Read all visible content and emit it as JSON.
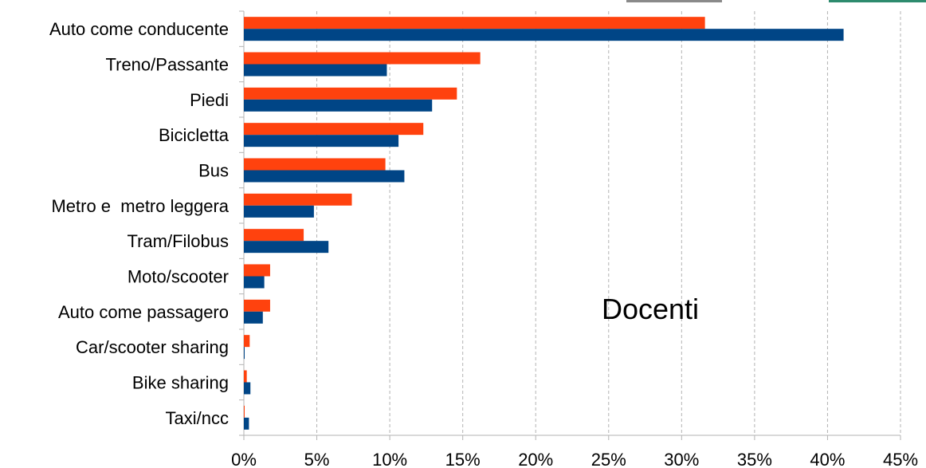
{
  "chart_data": {
    "type": "bar",
    "orientation": "horizontal",
    "categories": [
      "Auto come conducente",
      "Treno/Passante",
      "Piedi",
      "Bicicletta",
      "Bus",
      "Metro e  metro leggera",
      "Tram/Filobus",
      "Moto/scooter",
      "Auto come passagero",
      "Car/scooter sharing",
      "Bike sharing",
      "Taxi/ncc"
    ],
    "series": [
      {
        "color": "#ff420e",
        "values": [
          31.6,
          16.2,
          14.6,
          12.3,
          9.7,
          7.4,
          4.1,
          1.8,
          1.8,
          0.4,
          0.2,
          0.05
        ]
      },
      {
        "color": "#004586",
        "values": [
          41.1,
          9.8,
          12.9,
          10.6,
          11.0,
          4.8,
          5.8,
          1.4,
          1.3,
          0.05,
          0.45,
          0.35
        ]
      }
    ],
    "xlim": [
      0,
      45
    ],
    "x_ticks": [
      0,
      5,
      10,
      15,
      20,
      25,
      30,
      35,
      40,
      45
    ],
    "x_tick_labels": [
      "0%",
      "5%",
      "10%",
      "15%",
      "20%",
      "25%",
      "30%",
      "35%",
      "40%",
      "45%"
    ],
    "grid": true,
    "annotation": "Docenti",
    "xlabel": "",
    "ylabel": "",
    "title": ""
  }
}
